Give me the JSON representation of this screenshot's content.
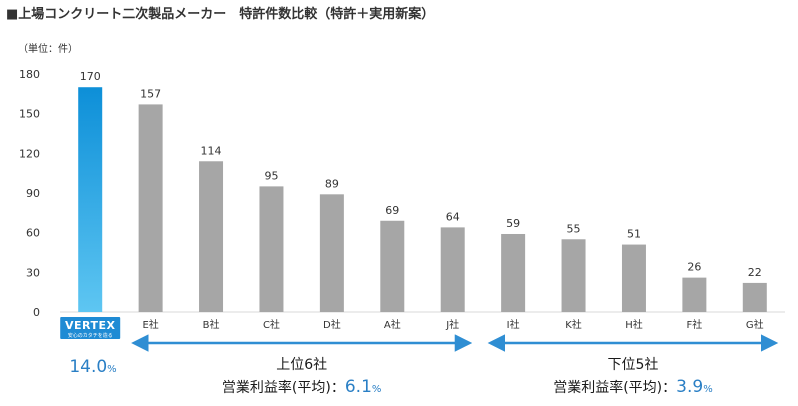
{
  "colors": {
    "highlight_top": "#0d8fd8",
    "highlight_bottom": "#5ec6f2",
    "bar": "#a6a6a6",
    "bracket": "#2f8ed3",
    "accent_text": "#2a7fc5",
    "logo_bg": "#1f8bd4"
  },
  "logo": {
    "name": "VERTEX",
    "tagline": "安心のカタチを造る"
  },
  "chart_data": {
    "type": "bar",
    "title": "■上場コンクリート二次製品メーカー　特許件数比較（特許＋実用新案）",
    "unit_label": "（単位：件）",
    "ylim": [
      0,
      180
    ],
    "yticks": [
      "0",
      "30",
      "60",
      "90",
      "120",
      "150",
      "180"
    ],
    "grid": false,
    "categories": [
      "VERTEX",
      "E社",
      "B社",
      "C社",
      "D社",
      "A社",
      "J社",
      "I社",
      "K社",
      "H社",
      "F社",
      "G社"
    ],
    "values": [
      170,
      157,
      114,
      95,
      89,
      69,
      64,
      59,
      55,
      51,
      26,
      22
    ],
    "highlight_index": 0,
    "annotations": {
      "vertex_margin": {
        "value": "14.0",
        "unit": "%"
      },
      "top_group": {
        "label": "上位6社",
        "margin_label": "営業利益率(平均)：",
        "margin_value": "6.1",
        "unit": "%",
        "range": [
          "E社",
          "J社"
        ]
      },
      "bottom_group": {
        "label": "下位5社",
        "margin_label": "営業利益率(平均)：",
        "margin_value": "3.9",
        "unit": "%",
        "range": [
          "I社",
          "G社"
        ]
      }
    }
  }
}
